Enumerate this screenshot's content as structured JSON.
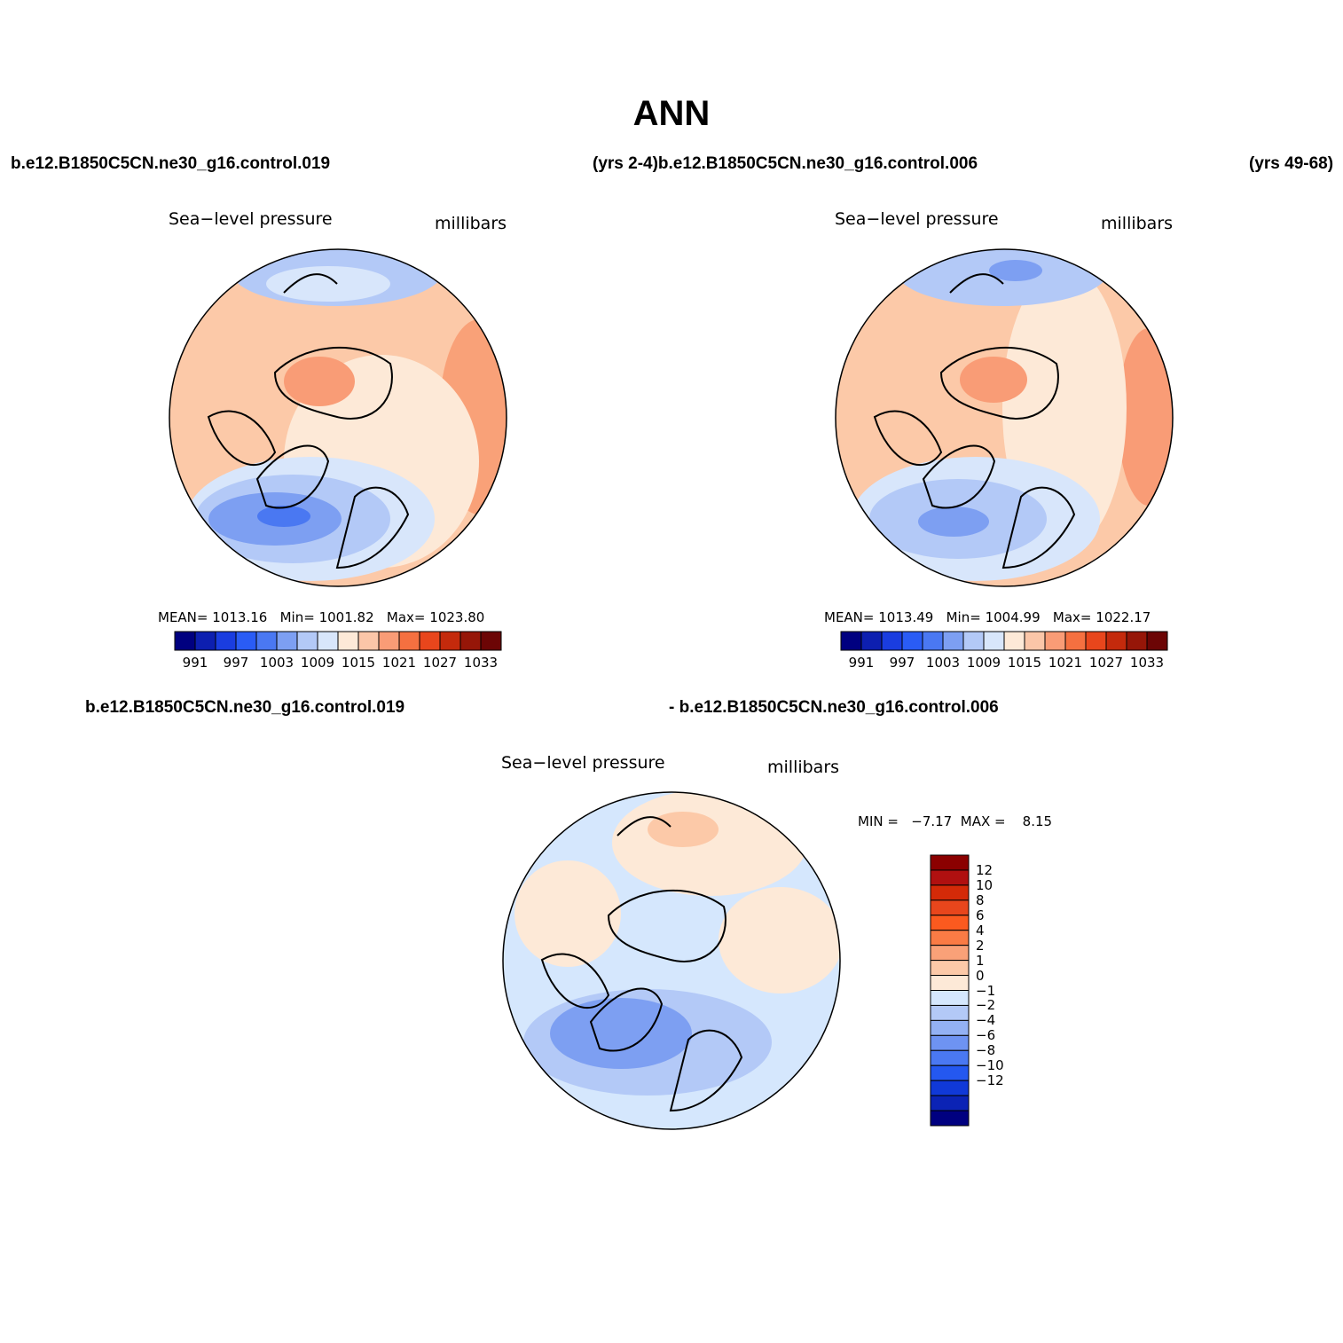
{
  "title": "ANN",
  "header": {
    "case_left": "b.e12.B1850C5CN.ne30_g16.control.019",
    "case_mid": "(yrs 2-4)b.e12.B1850C5CN.ne30_g16.control.006",
    "case_right": "(yrs 49-68)"
  },
  "diff_header": {
    "left": "b.e12.B1850C5CN.ne30_g16.control.019",
    "right": "- b.e12.B1850C5CN.ne30_g16.control.006"
  },
  "panels": [
    {
      "variable": "Sea−level pressure",
      "units": "millibars",
      "stats_mean_label": "MEAN=",
      "stats_mean": "1013.16",
      "stats_min_label": "Min=",
      "stats_min": "1001.82",
      "stats_max_label": "Max=",
      "stats_max": "1023.80"
    },
    {
      "variable": "Sea−level pressure",
      "units": "millibars",
      "stats_mean_label": "MEAN=",
      "stats_mean": "1013.49",
      "stats_min_label": "Min=",
      "stats_min": "1004.99",
      "stats_max_label": "Max=",
      "stats_max": "1022.17"
    },
    {
      "variable": "Sea−level pressure",
      "units": "millibars",
      "stats_min_label": "MIN =",
      "stats_min": "−7.17",
      "stats_max_label": "MAX =",
      "stats_max": "8.15"
    }
  ],
  "colorbars": {
    "abs_colors": [
      "#000080",
      "#0d1fb0",
      "#1a3de0",
      "#2a5cf5",
      "#4a78f2",
      "#7d9ff2",
      "#b3c9f7",
      "#d8e6fb",
      "#fde9d7",
      "#fbc6a8",
      "#f99c76",
      "#f57040",
      "#e8461c",
      "#c42a0c",
      "#961608",
      "#6c0505"
    ],
    "abs_ticks": [
      "991",
      "997",
      "1003",
      "1009",
      "1015",
      "1021",
      "1027",
      "1033"
    ],
    "diff_colors": [
      "#8b0000",
      "#b01010",
      "#d42a08",
      "#e8461c",
      "#fb5a1f",
      "#fa7b45",
      "#f9a178",
      "#fcc9a8",
      "#fde9d7",
      "#d5e7fd",
      "#b3c9f7",
      "#93b1f4",
      "#6e93f2",
      "#4a78f2",
      "#2458f0",
      "#1039d8",
      "#0b23b5",
      "#000080"
    ],
    "diff_ticks": [
      "12",
      "10",
      "8",
      "6",
      "4",
      "2",
      "1",
      "0",
      "−1",
      "−2",
      "−4",
      "−6",
      "−8",
      "−10",
      "−12"
    ]
  },
  "chart_data": [
    {
      "type": "heatmap",
      "projection": "north-polar-stereographic",
      "title": "Sea−level pressure",
      "units": "millibars",
      "case": "b.e12.B1850C5CN.ne30_g16.control.019",
      "mean": 1013.16,
      "min": 1001.82,
      "max": 1023.8,
      "colorbar_levels": [
        991,
        997,
        1003,
        1009,
        1015,
        1021,
        1027,
        1033
      ],
      "legend_placement": "bottom"
    },
    {
      "type": "heatmap",
      "projection": "north-polar-stereographic",
      "title": "Sea−level pressure",
      "units": "millibars",
      "case": "b.e12.B1850C5CN.ne30_g16.control.006",
      "mean": 1013.49,
      "min": 1004.99,
      "max": 1022.17,
      "colorbar_levels": [
        991,
        997,
        1003,
        1009,
        1015,
        1021,
        1027,
        1033
      ],
      "legend_placement": "bottom"
    },
    {
      "type": "heatmap",
      "projection": "north-polar-stereographic",
      "title": "Sea−level pressure",
      "units": "millibars",
      "min": -7.17,
      "max": 8.15,
      "colorbar_levels": [
        12,
        10,
        8,
        6,
        4,
        2,
        1,
        0,
        -1,
        -2,
        -4,
        -6,
        -8,
        -10,
        -12
      ],
      "legend_placement": "right"
    }
  ]
}
